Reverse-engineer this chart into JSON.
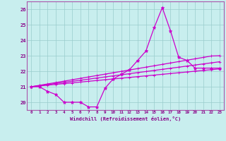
{
  "bg_color": "#c8eeee",
  "line_color": "#cc00cc",
  "grid_color": "#99cccc",
  "xlabel": "Windchill (Refroidissement éolien,°C)",
  "x_values": [
    0,
    1,
    2,
    3,
    4,
    5,
    6,
    7,
    8,
    9,
    10,
    11,
    12,
    13,
    14,
    15,
    16,
    17,
    18,
    19,
    20,
    21,
    22,
    23
  ],
  "ylim": [
    19.5,
    26.5
  ],
  "xlim": [
    -0.5,
    23.5
  ],
  "yticks": [
    20,
    21,
    22,
    23,
    24,
    25,
    26
  ],
  "xtick_labels": [
    "0",
    "1",
    "2",
    "3",
    "4",
    "5",
    "6",
    "7",
    "8",
    "9",
    "10",
    "11",
    "12",
    "13",
    "14",
    "15",
    "16",
    "17",
    "18",
    "19",
    "20",
    "21",
    "22",
    "23"
  ],
  "series_jagged": [
    21.0,
    21.0,
    20.7,
    20.5,
    20.0,
    20.0,
    20.0,
    19.7,
    19.7,
    20.9,
    21.5,
    21.8,
    22.1,
    22.7,
    23.3,
    24.8,
    26.1,
    24.6,
    22.9,
    22.7,
    22.2,
    22.2,
    22.2,
    22.2
  ],
  "series_line1": [
    21.0,
    21.05,
    21.1,
    21.15,
    21.2,
    21.25,
    21.3,
    21.35,
    21.4,
    21.45,
    21.5,
    21.55,
    21.6,
    21.65,
    21.7,
    21.75,
    21.8,
    21.85,
    21.9,
    21.95,
    22.0,
    22.05,
    22.1,
    22.15
  ],
  "series_line2": [
    21.0,
    21.07,
    21.14,
    21.21,
    21.28,
    21.35,
    21.42,
    21.49,
    21.56,
    21.63,
    21.7,
    21.77,
    21.84,
    21.91,
    21.98,
    22.05,
    22.12,
    22.19,
    22.26,
    22.33,
    22.4,
    22.47,
    22.54,
    22.61
  ],
  "series_line3": [
    21.0,
    21.09,
    21.18,
    21.27,
    21.36,
    21.45,
    21.54,
    21.63,
    21.72,
    21.81,
    21.9,
    21.99,
    22.08,
    22.17,
    22.26,
    22.35,
    22.44,
    22.53,
    22.62,
    22.71,
    22.8,
    22.89,
    22.98,
    23.0
  ]
}
